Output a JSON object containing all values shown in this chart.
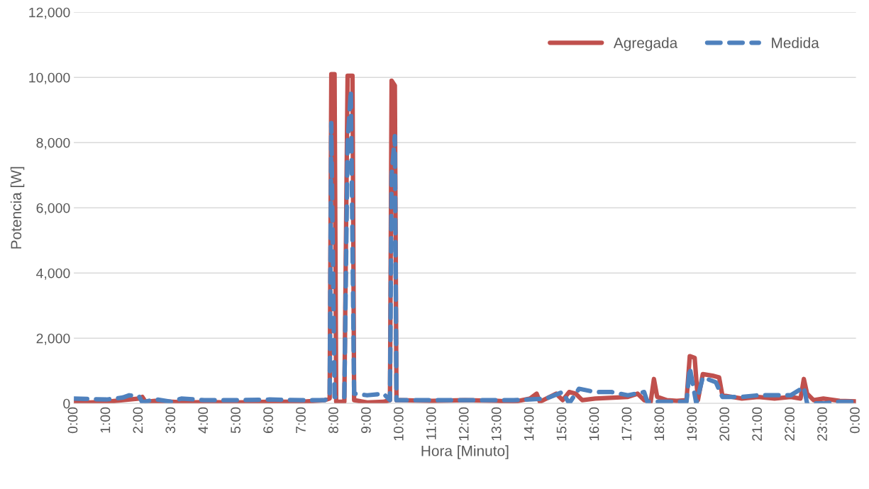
{
  "chart_data": {
    "type": "line",
    "xlabel": "Hora [Minuto]",
    "ylabel": "Potencia [W]",
    "xlim": [
      0,
      24
    ],
    "ylim": [
      0,
      12000
    ],
    "xticks": [
      {
        "value": 0,
        "label": "0:00"
      },
      {
        "value": 1,
        "label": "1:00"
      },
      {
        "value": 2,
        "label": "2:00"
      },
      {
        "value": 3,
        "label": "3:00"
      },
      {
        "value": 4,
        "label": "4:00"
      },
      {
        "value": 5,
        "label": "5:00"
      },
      {
        "value": 6,
        "label": "6:00"
      },
      {
        "value": 7,
        "label": "7:00"
      },
      {
        "value": 8,
        "label": "8:00"
      },
      {
        "value": 9,
        "label": "9:00"
      },
      {
        "value": 10,
        "label": "10:00"
      },
      {
        "value": 11,
        "label": "11:00"
      },
      {
        "value": 12,
        "label": "12:00"
      },
      {
        "value": 13,
        "label": "13:00"
      },
      {
        "value": 14,
        "label": "14:00"
      },
      {
        "value": 15,
        "label": "15:00"
      },
      {
        "value": 16,
        "label": "16:00"
      },
      {
        "value": 17,
        "label": "17:00"
      },
      {
        "value": 18,
        "label": "18:00"
      },
      {
        "value": 19,
        "label": "19:00"
      },
      {
        "value": 20,
        "label": "20:00"
      },
      {
        "value": 21,
        "label": "21:00"
      },
      {
        "value": 22,
        "label": "22:00"
      },
      {
        "value": 23,
        "label": "23:00"
      },
      {
        "value": 24,
        "label": "0:00"
      }
    ],
    "yticks": [
      {
        "value": 0,
        "label": "0"
      },
      {
        "value": 2000,
        "label": "2,000"
      },
      {
        "value": 4000,
        "label": "4,000"
      },
      {
        "value": 6000,
        "label": "6,000"
      },
      {
        "value": 8000,
        "label": "8,000"
      },
      {
        "value": 10000,
        "label": "10,000"
      },
      {
        "value": 12000,
        "label": "12,000"
      }
    ],
    "grid": "y",
    "legend": "top right",
    "marker": "none",
    "series": [
      {
        "name": "Agregada",
        "color": "#c0504d",
        "line_style": "solid",
        "x": [
          0,
          0.5,
          1,
          1.5,
          2,
          2.1,
          2.2,
          2.5,
          3,
          3.5,
          4,
          5,
          6,
          7,
          7.7,
          7.85,
          7.9,
          8.0,
          8.05,
          8.3,
          8.4,
          8.55,
          8.6,
          9,
          9.5,
          9.7,
          9.75,
          9.85,
          9.9,
          10,
          11,
          12,
          13,
          13.5,
          14,
          14.2,
          14.3,
          14.8,
          15,
          15.2,
          15.4,
          15.6,
          16,
          17,
          17.3,
          17.5,
          17.7,
          17.8,
          17.9,
          18.2,
          18.5,
          18.8,
          18.9,
          19.05,
          19.15,
          19.3,
          19.6,
          19.8,
          19.9,
          20.5,
          21,
          21.5,
          22,
          22.3,
          22.4,
          22.5,
          22.7,
          23,
          23.5,
          24
        ],
        "values": [
          50,
          30,
          50,
          100,
          150,
          200,
          50,
          80,
          50,
          30,
          40,
          30,
          50,
          50,
          100,
          150,
          10100,
          10100,
          50,
          50,
          10050,
          10050,
          100,
          30,
          50,
          100,
          9900,
          9750,
          100,
          100,
          80,
          100,
          80,
          50,
          150,
          300,
          50,
          300,
          100,
          350,
          300,
          100,
          150,
          200,
          300,
          100,
          50,
          750,
          200,
          100,
          80,
          100,
          1450,
          1400,
          100,
          900,
          850,
          800,
          250,
          150,
          200,
          150,
          200,
          150,
          750,
          300,
          100,
          150,
          80,
          60
        ]
      },
      {
        "name": "Medida",
        "color": "#4f81bd",
        "line_style": "dashed",
        "x": [
          0,
          1,
          1.5,
          1.7,
          2,
          2.1,
          2.5,
          3,
          3.3,
          4,
          5,
          6,
          7,
          7.7,
          7.85,
          7.9,
          8.0,
          8.3,
          8.4,
          8.5,
          8.6,
          9,
          9.5,
          9.7,
          9.75,
          9.85,
          9.9,
          10,
          11,
          12,
          13,
          13.5,
          14.5,
          15,
          15.2,
          15.5,
          16,
          16.5,
          17,
          17.5,
          17.6,
          18,
          18.8,
          18.9,
          19.1,
          19.3,
          19.7,
          19.9,
          20.5,
          21,
          22,
          22.4,
          22.5,
          23,
          23.5,
          24
        ],
        "values": [
          150,
          120,
          180,
          250,
          220,
          30,
          130,
          50,
          150,
          100,
          100,
          120,
          100,
          100,
          200,
          8600,
          200,
          200,
          8000,
          9600,
          300,
          250,
          300,
          100,
          7000,
          8200,
          100,
          100,
          100,
          100,
          100,
          100,
          150,
          350,
          0,
          450,
          350,
          350,
          250,
          350,
          50,
          50,
          50,
          1100,
          0,
          800,
          650,
          200,
          200,
          250,
          250,
          500,
          0,
          0,
          50,
          50
        ]
      }
    ]
  }
}
